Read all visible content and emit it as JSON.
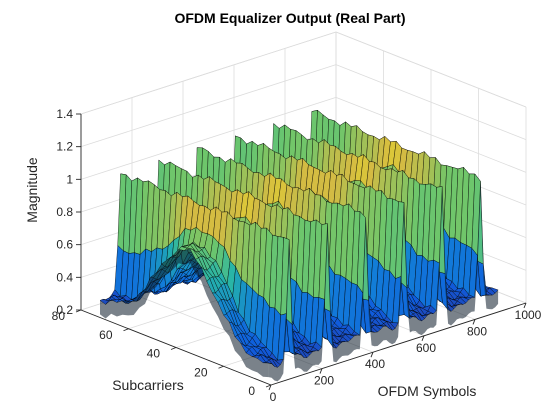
{
  "chart_data": {
    "type": "surface",
    "title": "OFDM Equalizer Output (Real Part)",
    "xlabel": "OFDM Symbols",
    "ylabel": "Subcarriers",
    "zlabel": "Magnitude",
    "xlim": [
      0,
      1000
    ],
    "ylim": [
      0,
      80
    ],
    "zlim": [
      0.2,
      1.4
    ],
    "xticks": [
      "0",
      "200",
      "400",
      "600",
      "800",
      "1000"
    ],
    "yticks": [
      "0",
      "20",
      "40",
      "60",
      "80"
    ],
    "zticks": [
      "0.2",
      "0.4",
      "0.6",
      "0.8",
      "1",
      "1.2",
      "1.4"
    ],
    "grid": true,
    "colormap": "parula",
    "surface": {
      "x_range": [
        0,
        900
      ],
      "y_range": [
        1,
        72
      ],
      "pilot_ridges_x": [
        80,
        230,
        380,
        530,
        680,
        830
      ],
      "ridge_peak_magnitude": 1.05,
      "hump_center_subcarrier": 36,
      "hump_peak_magnitude": 0.82,
      "trough_magnitude": 0.3
    }
  }
}
